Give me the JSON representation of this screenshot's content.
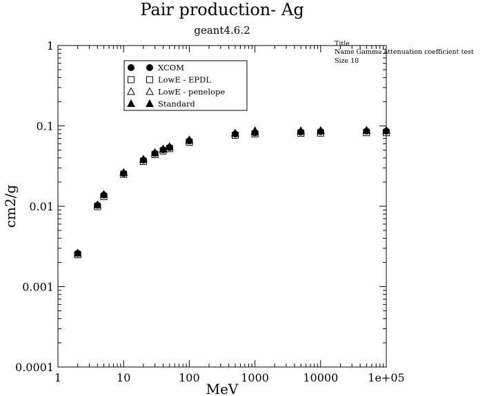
{
  "chart_data": {
    "type": "scatter",
    "title": "Pair production- Ag",
    "subtitle": "geant4.6.2",
    "xlabel": "MeV",
    "ylabel": "cm2/g",
    "xscale": "log",
    "yscale": "log",
    "xlim": [
      1,
      100000
    ],
    "ylim": [
      0.0001,
      1
    ],
    "x_ticks": [
      {
        "value": 1,
        "label": "1"
      },
      {
        "value": 10,
        "label": "10"
      },
      {
        "value": 100,
        "label": "100"
      },
      {
        "value": 1000,
        "label": "1000"
      },
      {
        "value": 10000,
        "label": "10000"
      },
      {
        "value": 100000,
        "label": "1e+05"
      }
    ],
    "y_ticks": [
      {
        "value": 0.0001,
        "label": "0.0001"
      },
      {
        "value": 0.001,
        "label": "0.001"
      },
      {
        "value": 0.01,
        "label": "0.01"
      },
      {
        "value": 0.1,
        "label": "0.1"
      },
      {
        "value": 1,
        "label": "1"
      }
    ],
    "grid": false,
    "legend_position": "top-left",
    "series": [
      {
        "name": "XCOM",
        "marker": "circle-filled",
        "x": [
          2,
          4,
          5,
          10,
          20,
          30,
          40,
          50,
          100,
          500,
          1000,
          5000,
          10000,
          50000,
          100000
        ],
        "y": [
          0.0026,
          0.0103,
          0.0138,
          0.0257,
          0.0375,
          0.0455,
          0.0505,
          0.054,
          0.065,
          0.079,
          0.082,
          0.084,
          0.085,
          0.086,
          0.086
        ]
      },
      {
        "name": "LowE - EPDL",
        "marker": "square-open",
        "x": [
          2,
          4,
          5,
          10,
          20,
          30,
          40,
          50,
          100,
          500,
          1000,
          5000,
          10000,
          50000,
          100000
        ],
        "y": [
          0.0025,
          0.0099,
          0.0132,
          0.025,
          0.0362,
          0.044,
          0.0488,
          0.0522,
          0.0625,
          0.0765,
          0.0795,
          0.081,
          0.0815,
          0.0825,
          0.0825
        ]
      },
      {
        "name": "LowE - penelope",
        "marker": "triangle-open",
        "x": [
          2,
          4,
          5,
          10,
          20,
          30,
          40,
          50,
          100,
          500,
          1000,
          5000,
          10000,
          50000,
          100000
        ],
        "y": [
          0.0026,
          0.0104,
          0.014,
          0.0262,
          0.0382,
          0.0462,
          0.0512,
          0.0548,
          0.0662,
          0.0805,
          0.084,
          0.086,
          0.0865,
          0.0875,
          0.0875
        ]
      },
      {
        "name": "Standard",
        "marker": "triangle-filled",
        "x": [
          2,
          4,
          5,
          10,
          20,
          30,
          40,
          50,
          100,
          500,
          1000,
          5000,
          10000,
          50000,
          100000
        ],
        "y": [
          0.0026,
          0.0104,
          0.014,
          0.0262,
          0.0385,
          0.0465,
          0.0515,
          0.0552,
          0.0668,
          0.0812,
          0.087,
          0.087,
          0.0875,
          0.088,
          0.088
        ]
      }
    ],
    "info_box": {
      "line1": "Title",
      "line2": "Name  Gamma attenuation coefficient test",
      "line3": "Size  18"
    }
  }
}
